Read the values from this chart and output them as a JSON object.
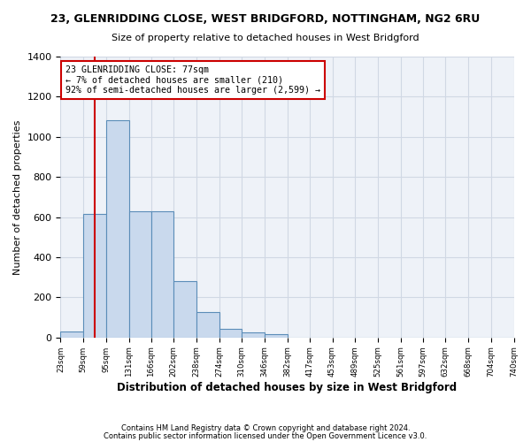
{
  "title1": "23, GLENRIDDING CLOSE, WEST BRIDGFORD, NOTTINGHAM, NG2 6RU",
  "title2": "Size of property relative to detached houses in West Bridgford",
  "xlabel": "Distribution of detached houses by size in West Bridgford",
  "ylabel": "Number of detached properties",
  "bin_edges": [
    23,
    59,
    95,
    131,
    166,
    202,
    238,
    274,
    310,
    346,
    382,
    417,
    453,
    489,
    525,
    561,
    597,
    632,
    668,
    704,
    740
  ],
  "bin_labels": [
    "23sqm",
    "59sqm",
    "95sqm",
    "131sqm",
    "166sqm",
    "202sqm",
    "238sqm",
    "274sqm",
    "310sqm",
    "346sqm",
    "382sqm",
    "417sqm",
    "453sqm",
    "489sqm",
    "525sqm",
    "561sqm",
    "597sqm",
    "632sqm",
    "668sqm",
    "704sqm",
    "740sqm"
  ],
  "values": [
    30,
    615,
    1085,
    630,
    630,
    280,
    125,
    45,
    25,
    15,
    0,
    0,
    0,
    0,
    0,
    0,
    0,
    0,
    0,
    0
  ],
  "bar_color": "#c9d9ed",
  "bar_edge_color": "#5b8db8",
  "grid_color": "#d0d8e4",
  "bg_color": "#eef2f8",
  "property_size": 77,
  "annotation_text": "23 GLENRIDDING CLOSE: 77sqm\n← 7% of detached houses are smaller (210)\n92% of semi-detached houses are larger (2,599) →",
  "annotation_box_color": "#ffffff",
  "annotation_border_color": "#cc0000",
  "ylim": [
    0,
    1400
  ],
  "yticks": [
    0,
    200,
    400,
    600,
    800,
    1000,
    1200,
    1400
  ],
  "footer1": "Contains HM Land Registry data © Crown copyright and database right 2024.",
  "footer2": "Contains public sector information licensed under the Open Government Licence v3.0."
}
